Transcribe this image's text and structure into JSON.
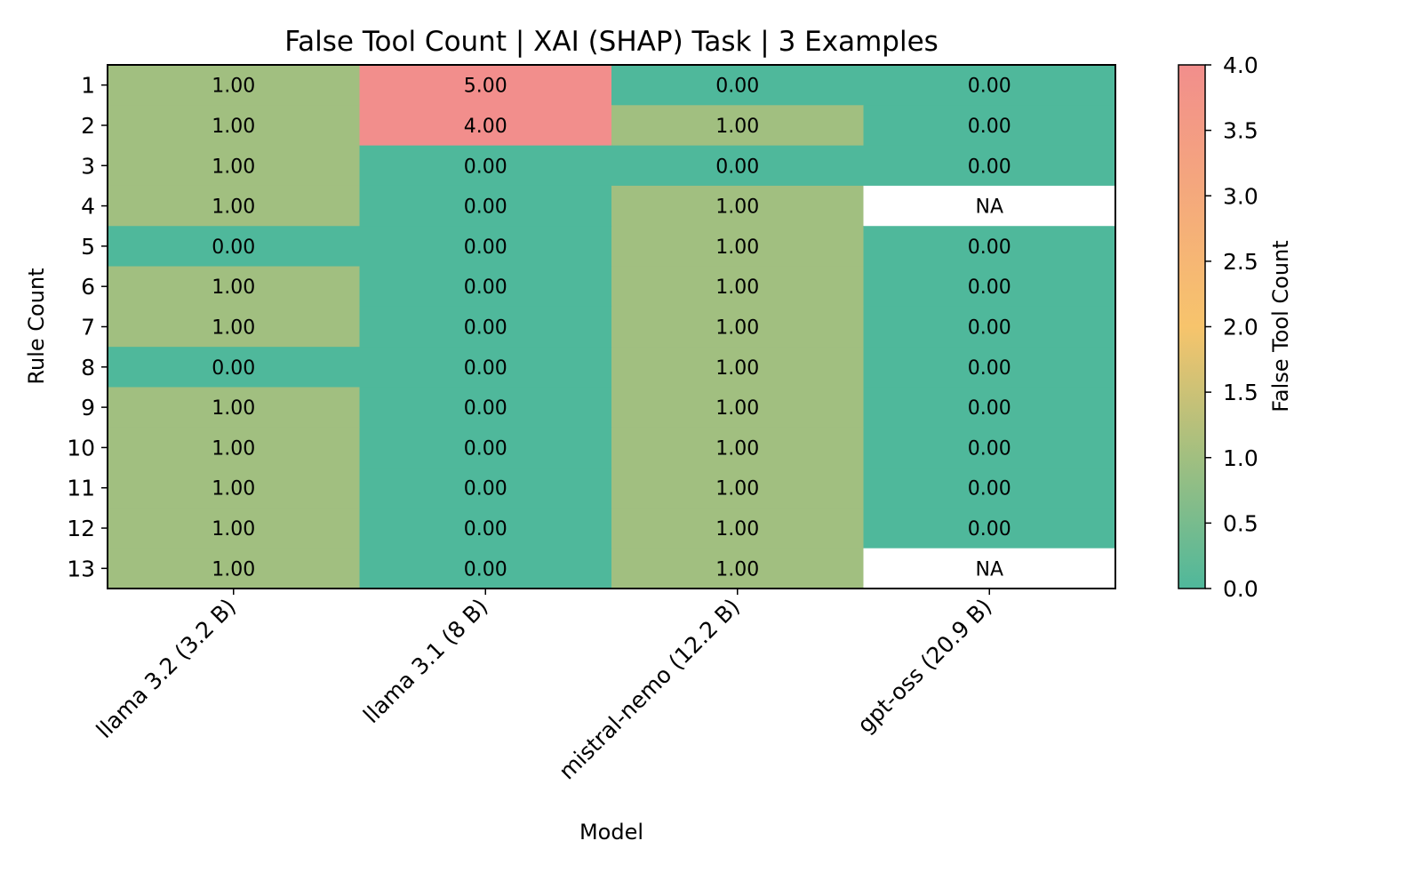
{
  "chart_data": {
    "type": "heatmap",
    "title": "False Tool Count | XAI (SHAP) Task | 3 Examples",
    "xlabel": "Model",
    "ylabel": "Rule Count",
    "colorbar_label": "False Tool Count",
    "x_categories": [
      "llama 3.2 (3.2 B)",
      "llama 3.1 (8 B)",
      "mistral-nemo (12.2 B)",
      "gpt-oss (20.9 B)"
    ],
    "y_categories": [
      "1",
      "2",
      "3",
      "4",
      "5",
      "6",
      "7",
      "8",
      "9",
      "10",
      "11",
      "12",
      "13"
    ],
    "values": [
      [
        1,
        5,
        0,
        0
      ],
      [
        1,
        4,
        1,
        0
      ],
      [
        1,
        0,
        0,
        0
      ],
      [
        1,
        0,
        1,
        null
      ],
      [
        0,
        0,
        1,
        0
      ],
      [
        1,
        0,
        1,
        0
      ],
      [
        1,
        0,
        1,
        0
      ],
      [
        0,
        0,
        1,
        0
      ],
      [
        1,
        0,
        1,
        0
      ],
      [
        1,
        0,
        1,
        0
      ],
      [
        1,
        0,
        1,
        0
      ],
      [
        1,
        0,
        1,
        0
      ],
      [
        1,
        0,
        1,
        null
      ]
    ],
    "missing_label": "NA",
    "value_format_decimals": 2,
    "color_range": [
      0,
      4
    ],
    "colorbar_ticks": [
      "0.0",
      "0.5",
      "1.0",
      "1.5",
      "2.0",
      "2.5",
      "3.0",
      "3.5",
      "4.0"
    ],
    "colormap": [
      "#4fb89b",
      "#a1bf80",
      "#f7c46c",
      "#f28e8c"
    ]
  }
}
